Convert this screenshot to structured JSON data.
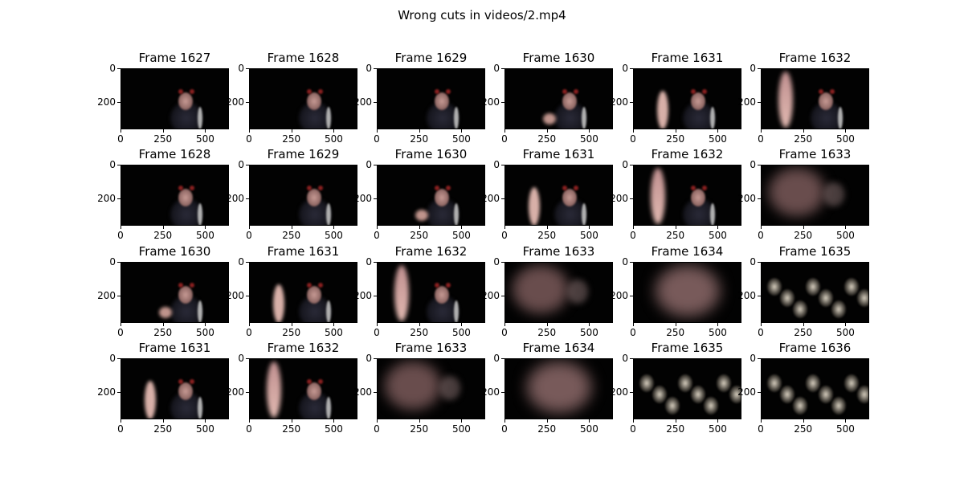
{
  "figure": {
    "title": "Wrong cuts in videos/2.mp4"
  },
  "chart_data": {
    "type": "image-grid",
    "title": "Wrong cuts in videos/2.mp4",
    "rows": 4,
    "cols": 6,
    "xticks": [
      "0",
      "250",
      "500"
    ],
    "yticks": [
      "0",
      "200"
    ],
    "x_tick_values": [
      0,
      250,
      500
    ],
    "y_tick_values": [
      0,
      200
    ],
    "xlim": [
      0,
      640
    ],
    "ylim": [
      360,
      0
    ],
    "panels": [
      {
        "title": "Frame 1627",
        "scene": "person-dark"
      },
      {
        "title": "Frame 1628",
        "scene": "person-dark"
      },
      {
        "title": "Frame 1629",
        "scene": "person-dark"
      },
      {
        "title": "Frame 1630",
        "scene": "person-arm-low"
      },
      {
        "title": "Frame 1631",
        "scene": "person-arm-mid"
      },
      {
        "title": "Frame 1632",
        "scene": "person-arm-high"
      },
      {
        "title": "Frame 1628",
        "scene": "person-dark"
      },
      {
        "title": "Frame 1629",
        "scene": "person-dark"
      },
      {
        "title": "Frame 1630",
        "scene": "person-arm-low"
      },
      {
        "title": "Frame 1631",
        "scene": "person-arm-mid"
      },
      {
        "title": "Frame 1632",
        "scene": "person-arm-high"
      },
      {
        "title": "Frame 1633",
        "scene": "blur-arm"
      },
      {
        "title": "Frame 1630",
        "scene": "person-arm-low"
      },
      {
        "title": "Frame 1631",
        "scene": "person-arm-mid"
      },
      {
        "title": "Frame 1632",
        "scene": "person-arm-high"
      },
      {
        "title": "Frame 1633",
        "scene": "blur-arm"
      },
      {
        "title": "Frame 1634",
        "scene": "blur-face"
      },
      {
        "title": "Frame 1635",
        "scene": "machinery"
      },
      {
        "title": "Frame 1631",
        "scene": "person-arm-mid"
      },
      {
        "title": "Frame 1632",
        "scene": "person-arm-high"
      },
      {
        "title": "Frame 1633",
        "scene": "blur-arm"
      },
      {
        "title": "Frame 1634",
        "scene": "blur-face"
      },
      {
        "title": "Frame 1635",
        "scene": "machinery"
      },
      {
        "title": "Frame 1636",
        "scene": "machinery"
      }
    ]
  }
}
